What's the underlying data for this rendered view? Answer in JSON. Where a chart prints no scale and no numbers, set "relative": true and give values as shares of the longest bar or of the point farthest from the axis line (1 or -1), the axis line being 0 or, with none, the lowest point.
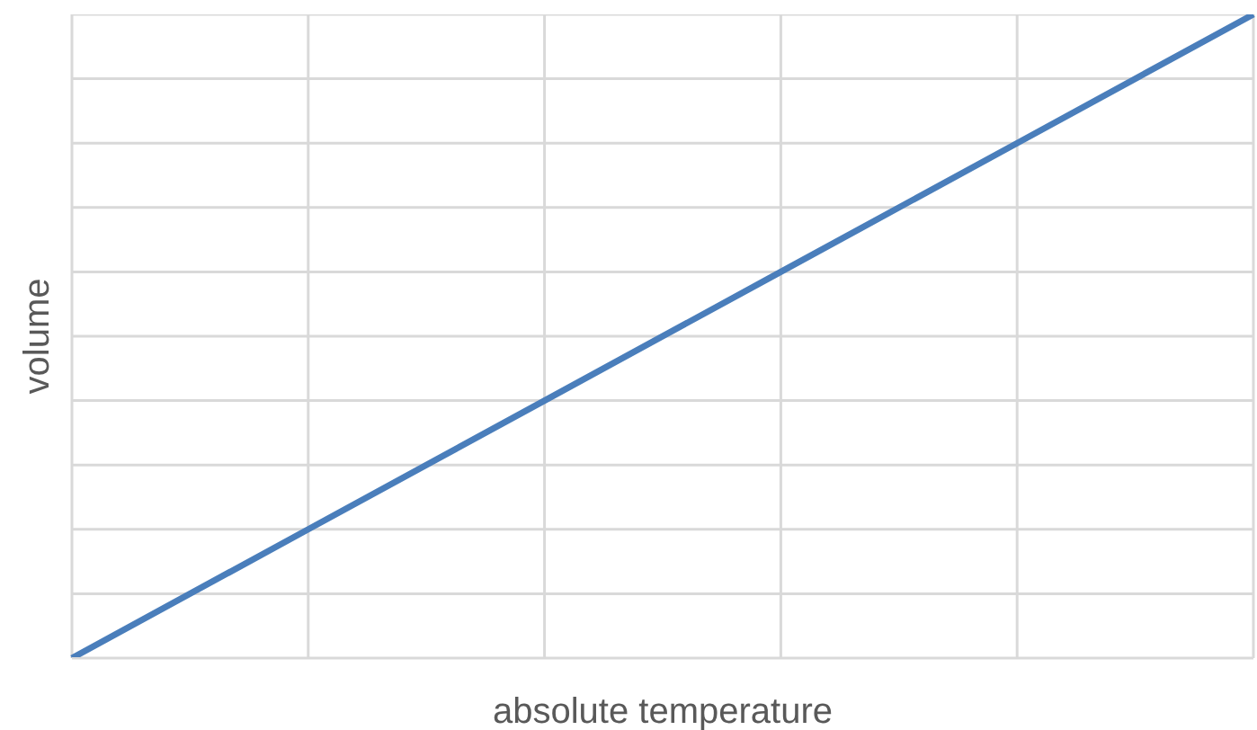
{
  "chart_data": {
    "type": "line",
    "xlabel": "absolute temperature",
    "ylabel": "volume",
    "relative": true,
    "categories": [
      null,
      null,
      null,
      null,
      null,
      null
    ],
    "series": [
      {
        "color": "#4a7ebb",
        "values": [
          0,
          0.2,
          0.4,
          0.6,
          0.8,
          1
        ]
      }
    ],
    "grid": true,
    "marker": "none",
    "line_style": "solid"
  }
}
